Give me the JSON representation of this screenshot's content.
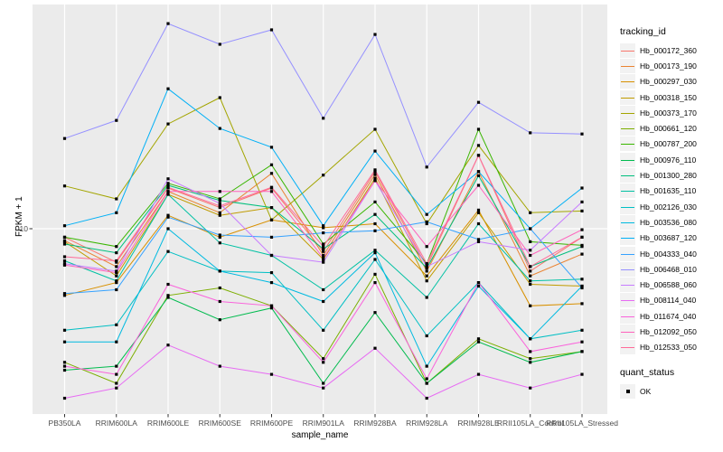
{
  "figure": {
    "panel_bg": "#EBEBEB",
    "grid_color": "#FFFFFF",
    "tick_color": "#333333",
    "tick_label_color": "#4D4D4D",
    "point_color": "#000000"
  },
  "legend": {
    "tracking_title": "tracking_id",
    "quant_title": "quant_status",
    "quant_items": [
      {
        "label": "OK",
        "shape": "filled-square"
      }
    ]
  },
  "chart_data": {
    "type": "line",
    "title": "",
    "xlabel": "sample_name",
    "ylabel": "FPKM + 1",
    "y_scale": "log10",
    "ylim": [
      1.6,
      90
    ],
    "y_ticks": [
      10
    ],
    "grid": "on",
    "legend_position": "right",
    "point_marker": "black square (quant_status = OK) at every data point",
    "categories": [
      "PB350LA",
      "RRIM600LA",
      "RRIM600LE",
      "RRIM600SE",
      "RRIM600PE",
      "RRIM901LA",
      "RRIM928BA",
      "RRIM928LA",
      "RRIM928LE",
      "RRII105LA_Control",
      "RRII105LA_Stressed"
    ],
    "series": [
      {
        "name": "Hb_000172_360",
        "color": "#F8766D",
        "values": [
          9.2,
          7.2,
          14.9,
          12.3,
          14.9,
          8.0,
          17.5,
          6.9,
          20.5,
          6.6,
          9.2
        ]
      },
      {
        "name": "Hb_000173_190",
        "color": "#EA8331",
        "values": [
          8.9,
          6.9,
          14.4,
          11.7,
          17.2,
          7.7,
          17.0,
          6.6,
          17.5,
          6.3,
          7.8
        ]
      },
      {
        "name": "Hb_000297_030",
        "color": "#D89000",
        "values": [
          5.2,
          5.9,
          11.4,
          9.2,
          10.9,
          10.1,
          10.5,
          6.3,
          12.0,
          4.7,
          4.8
        ]
      },
      {
        "name": "Hb_000318_150",
        "color": "#C09B00",
        "values": [
          8.8,
          6.3,
          14.0,
          11.4,
          12.3,
          7.4,
          16.4,
          6.0,
          11.7,
          5.8,
          5.7
        ]
      },
      {
        "name": "Hb_000373_170",
        "color": "#A3A500",
        "values": [
          15.2,
          13.4,
          27.9,
          36.1,
          10.9,
          16.9,
          26.5,
          10.5,
          22.6,
          11.7,
          11.9
        ]
      },
      {
        "name": "Hb_000661_120",
        "color": "#7CAE00",
        "values": [
          2.7,
          2.2,
          5.2,
          5.6,
          4.7,
          2.8,
          6.4,
          2.2,
          3.4,
          2.8,
          3.0
        ]
      },
      {
        "name": "Hb_000787_200",
        "color": "#39B600",
        "values": [
          9.2,
          8.4,
          15.6,
          13.4,
          18.7,
          8.6,
          13.0,
          7.1,
          26.5,
          8.8,
          8.5
        ]
      },
      {
        "name": "Hb_000976_110",
        "color": "#00BB4E",
        "values": [
          2.5,
          2.6,
          5.1,
          4.1,
          4.6,
          2.2,
          4.4,
          2.2,
          3.3,
          2.7,
          3.0
        ]
      },
      {
        "name": "Hb_001300_280",
        "color": "#00BF7D",
        "values": [
          8.6,
          7.9,
          15.3,
          13.2,
          12.3,
          8.2,
          11.5,
          6.8,
          16.8,
          6.9,
          8.4
        ]
      },
      {
        "name": "Hb_001635_110",
        "color": "#00C1A3",
        "values": [
          7.3,
          6.0,
          14.0,
          8.7,
          7.7,
          5.5,
          8.1,
          5.1,
          10.5,
          6.0,
          6.1
        ]
      },
      {
        "name": "Hb_002126_030",
        "color": "#00BFC4",
        "values": [
          3.7,
          3.9,
          8.0,
          6.6,
          6.5,
          3.7,
          7.4,
          3.5,
          5.9,
          3.4,
          3.7
        ]
      },
      {
        "name": "Hb_003536_080",
        "color": "#00BAE0",
        "values": [
          3.3,
          3.3,
          10.0,
          6.6,
          5.9,
          4.9,
          7.9,
          2.6,
          5.7,
          3.4,
          5.7
        ]
      },
      {
        "name": "Hb_003687_120",
        "color": "#00B0F6",
        "values": [
          10.3,
          11.7,
          39.4,
          26.7,
          22.2,
          10.3,
          21.4,
          11.5,
          17.5,
          10.0,
          14.9
        ]
      },
      {
        "name": "Hb_004333_040",
        "color": "#35A2FF",
        "values": [
          5.3,
          5.5,
          11.2,
          9.4,
          9.2,
          9.6,
          9.8,
          10.7,
          9.0,
          10.0,
          5.6
        ]
      },
      {
        "name": "Hb_006468_010",
        "color": "#9590FF",
        "values": [
          24.2,
          28.9,
          74.6,
          60.9,
          70.2,
          29.5,
          67.1,
          18.3,
          34.5,
          25.6,
          25.3
        ]
      },
      {
        "name": "Hb_006588_060",
        "color": "#C77CFF",
        "values": [
          7.1,
          6.6,
          16.3,
          12.8,
          7.7,
          7.2,
          16.0,
          6.9,
          8.8,
          8.1,
          13.0
        ]
      },
      {
        "name": "Hb_008114_040",
        "color": "#E76BF3",
        "values": [
          1.9,
          2.1,
          3.2,
          2.6,
          2.4,
          2.1,
          3.1,
          1.9,
          2.4,
          2.1,
          2.4
        ]
      },
      {
        "name": "Hb_011674_040",
        "color": "#FA62DB",
        "values": [
          2.6,
          2.4,
          5.8,
          4.9,
          4.7,
          2.7,
          5.9,
          2.3,
          5.9,
          3.0,
          3.3
        ]
      },
      {
        "name": "Hb_012092_050",
        "color": "#FF62BC",
        "values": [
          7.0,
          6.5,
          14.4,
          14.4,
          14.4,
          7.5,
          16.0,
          8.4,
          15.3,
          7.7,
          9.9
        ]
      },
      {
        "name": "Hb_012533_050",
        "color": "#FF6A98",
        "values": [
          7.6,
          7.3,
          15.0,
          12.5,
          15.0,
          8.4,
          17.8,
          7.1,
          20.5,
          6.9,
          9.2
        ]
      }
    ]
  }
}
